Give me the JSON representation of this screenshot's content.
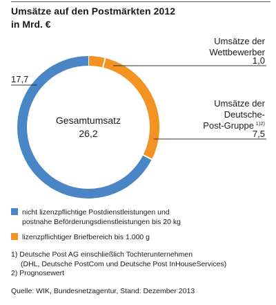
{
  "header": {
    "title": "Umsätze auf den Postmärkten 2012",
    "subtitle": "in Mrd. €"
  },
  "chart_data": {
    "type": "pie",
    "center_label": "Gesamtumsatz",
    "total_label": "26,2",
    "total": 26.2,
    "slices": [
      {
        "label_lines": [
          "Umsätze der",
          "Wettbewerber"
        ],
        "value": 1.0,
        "value_label": "1,0",
        "color": "#f39323",
        "sup": ""
      },
      {
        "label_lines": [
          "Umsätze der",
          "Deutsche-",
          "Post-Gruppe"
        ],
        "value": 7.5,
        "value_label": "7,5",
        "color": "#f39323",
        "sup": "1)2)"
      },
      {
        "label_lines": [],
        "value": 17.7,
        "value_label": "17,7",
        "color": "#4a86c5",
        "sup": ""
      }
    ]
  },
  "legend": {
    "items": [
      {
        "color": "#4a86c5",
        "text_lines": [
          "nicht lizenzpflichtige Postdienstleistungen und",
          "postnahe Beförderungsdienstleistungen bis 20 kg"
        ]
      },
      {
        "color": "#f39323",
        "text_lines": [
          "lizenzpflichtiger Briefbereich bis 1.000 g"
        ]
      }
    ]
  },
  "footnotes": [
    "1) Deutsche Post AG einschließlich Tochterunternehmen",
    "(DHL, Deutsche PostCom und Deutsche Post InHouseServices)",
    "2) Prognosewert"
  ],
  "source": "Quelle: WIK, Bundesnetzagentur, Stand: Dezember 2013"
}
